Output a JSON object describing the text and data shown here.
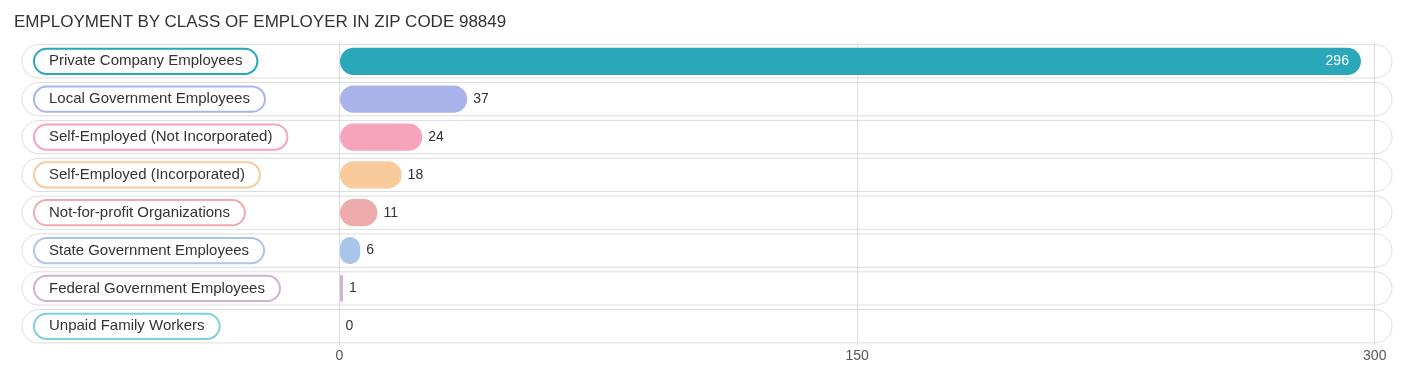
{
  "chart_data": {
    "type": "bar",
    "orientation": "horizontal",
    "title": "EMPLOYMENT BY CLASS OF EMPLOYER IN ZIP CODE 98849",
    "categories": [
      "Private Company Employees",
      "Local Government Employees",
      "Self-Employed (Not Incorporated)",
      "Self-Employed (Incorporated)",
      "Not-for-profit Organizations",
      "State Government Employees",
      "Federal Government Employees",
      "Unpaid Family Workers"
    ],
    "values": [
      296,
      37,
      24,
      18,
      11,
      6,
      1,
      0
    ],
    "colors": [
      "#2aa7b8",
      "#aab3ea",
      "#f6a3bc",
      "#f9ca9b",
      "#eeabab",
      "#a9c6ea",
      "#ceb2d6",
      "#7ecfd7"
    ],
    "xlim": [
      -92,
      305
    ],
    "xticks": [
      0,
      150,
      300
    ],
    "grid": "x",
    "data_labels": true
  }
}
